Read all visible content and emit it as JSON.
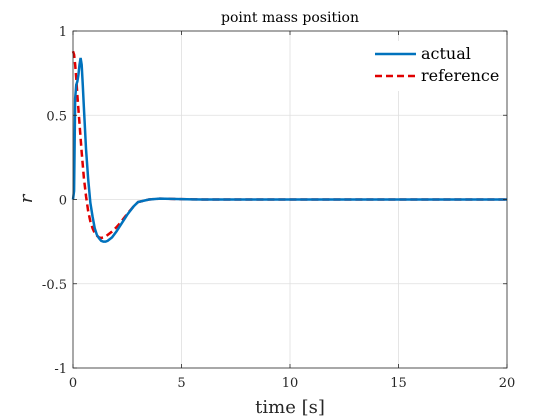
{
  "chart_data": {
    "type": "line",
    "title": "point mass position",
    "xlabel": "time [s]",
    "ylabel": "r",
    "xlim": [
      0,
      20
    ],
    "ylim": [
      -1,
      1
    ],
    "xticks": [
      0,
      5,
      10,
      15,
      20
    ],
    "xtick_labels": [
      "0",
      "5",
      "10",
      "15",
      "20"
    ],
    "yticks": [
      -1,
      -0.5,
      0,
      0.5,
      1
    ],
    "ytick_labels": [
      "-1",
      "-0.5",
      "0",
      "0.5",
      "1"
    ],
    "grid": true,
    "legend_position": "top-right",
    "series": [
      {
        "name": "actual",
        "color": "#0072BD",
        "style": "solid",
        "x": [
          0,
          0.05,
          0.1,
          0.15,
          0.2,
          0.25,
          0.3,
          0.35,
          0.4,
          0.45,
          0.5,
          0.6,
          0.7,
          0.8,
          0.9,
          1.0,
          1.1,
          1.2,
          1.3,
          1.4,
          1.5,
          1.6,
          1.8,
          2.0,
          2.2,
          2.5,
          2.8,
          3.0,
          3.5,
          4.0,
          4.5,
          5.0,
          5.5,
          6.0,
          7.0,
          8.0,
          10,
          12,
          14,
          16,
          18,
          20
        ],
        "y": [
          0.0,
          0.05,
          0.6,
          0.68,
          0.7,
          0.74,
          0.8,
          0.84,
          0.8,
          0.68,
          0.55,
          0.3,
          0.12,
          -0.02,
          -0.1,
          -0.17,
          -0.21,
          -0.23,
          -0.245,
          -0.25,
          -0.25,
          -0.245,
          -0.225,
          -0.19,
          -0.15,
          -0.09,
          -0.04,
          -0.015,
          0.0,
          0.005,
          0.004,
          0.002,
          0.001,
          0.0,
          0.0,
          0.0,
          0.0,
          0.0,
          0.0,
          0.0,
          0.0,
          0.0
        ]
      },
      {
        "name": "reference",
        "color": "#E00000",
        "style": "dashed",
        "x": [
          0,
          0.05,
          0.1,
          0.15,
          0.2,
          0.3,
          0.4,
          0.5,
          0.6,
          0.7,
          0.8,
          0.9,
          1.0,
          1.1,
          1.2,
          1.3,
          1.4,
          1.5,
          1.6,
          1.8,
          2.0,
          2.2,
          2.5,
          2.8,
          3.0,
          3.5,
          4.0,
          4.5,
          5.0,
          5.5,
          6.0,
          7.0,
          8.0,
          10,
          12,
          14,
          16,
          18,
          20
        ],
        "y": [
          0.88,
          0.86,
          0.8,
          0.72,
          0.62,
          0.45,
          0.28,
          0.13,
          0.02,
          -0.07,
          -0.13,
          -0.17,
          -0.2,
          -0.215,
          -0.225,
          -0.228,
          -0.225,
          -0.22,
          -0.21,
          -0.19,
          -0.165,
          -0.135,
          -0.085,
          -0.04,
          -0.015,
          0.0,
          0.005,
          0.004,
          0.002,
          0.001,
          0.0,
          0.0,
          0.0,
          0.0,
          0.0,
          0.0,
          0.0,
          0.0,
          0.0
        ]
      }
    ]
  }
}
